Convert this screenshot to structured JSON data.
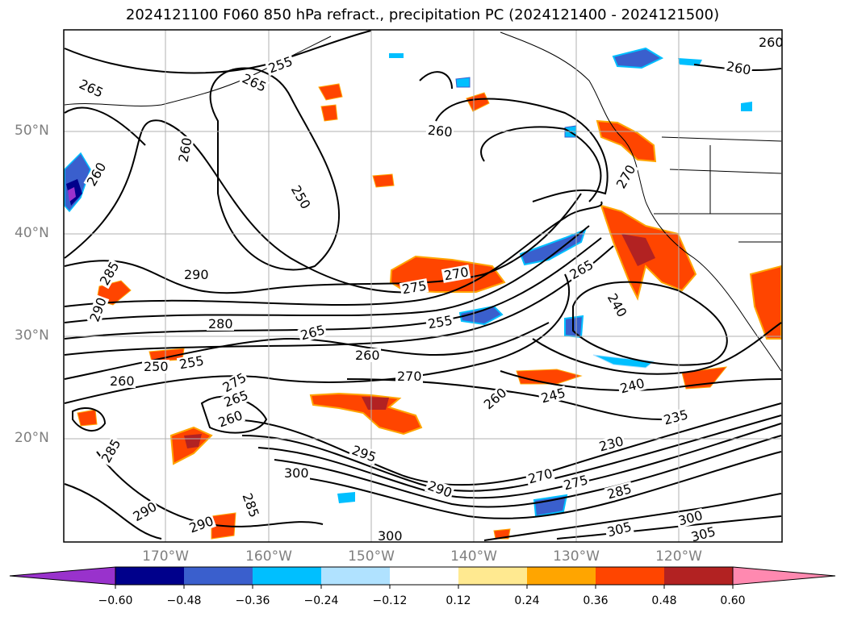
{
  "title": "2024121100 F060 850 hPa refract., precipitation PC (2024121400 - 2024121500)",
  "lat_labels": [
    "50°N",
    "40°N",
    "30°N",
    "20°N"
  ],
  "lon_labels": [
    "170°W",
    "160°W",
    "150°W",
    "140°W",
    "130°W",
    "120°W"
  ],
  "colorbar": {
    "ticks": [
      "−0.60",
      "−0.48",
      "−0.36",
      "−0.24",
      "−0.12",
      "0.12",
      "0.24",
      "0.36",
      "0.48",
      "0.60"
    ],
    "colors": [
      "#9932cc",
      "#00008b",
      "#3a5fcd",
      "#00bfff",
      "#b0e2ff",
      "#ffffff",
      "#ffe990",
      "#ffa500",
      "#ff4500",
      "#b22222",
      "#ff89b0"
    ]
  },
  "contour_labels": [
    "265",
    "265",
    "255",
    "260",
    "260",
    "260",
    "250",
    "260",
    "270",
    "265",
    "260",
    "285",
    "290",
    "290",
    "280",
    "270",
    "275",
    "265",
    "255",
    "250",
    "255",
    "260",
    "275",
    "265",
    "260",
    "260",
    "270",
    "260",
    "245",
    "240",
    "240",
    "235",
    "230",
    "295",
    "285",
    "300",
    "290",
    "270",
    "275",
    "285",
    "290",
    "285",
    "290",
    "300",
    "305",
    "300",
    "305"
  ]
}
